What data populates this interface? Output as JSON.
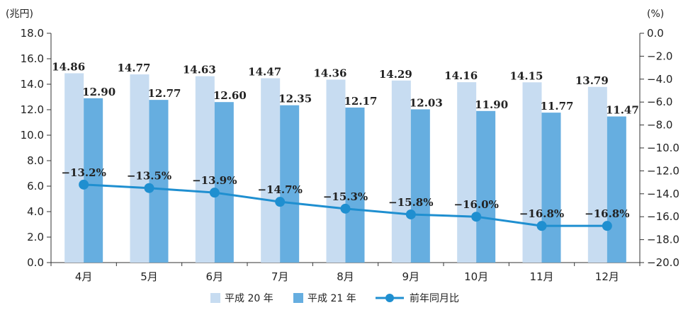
{
  "chart_data": {
    "type": "bar",
    "left_unit": "(兆円)",
    "right_unit": "(%)",
    "categories": [
      "4月",
      "5月",
      "6月",
      "7月",
      "8月",
      "9月",
      "10月",
      "11月",
      "12月"
    ],
    "series": [
      {
        "name": "平成 20 年",
        "type": "bar",
        "axis": "left",
        "color": "#c7dcf1",
        "values": [
          14.86,
          14.77,
          14.63,
          14.47,
          14.36,
          14.29,
          14.16,
          14.15,
          13.79
        ],
        "labels": [
          "14.86",
          "14.77",
          "14.63",
          "14.47",
          "14.36",
          "14.29",
          "14.16",
          "14.15",
          "13.79"
        ]
      },
      {
        "name": "平成 21 年",
        "type": "bar",
        "axis": "left",
        "color": "#66aee0",
        "values": [
          12.9,
          12.77,
          12.6,
          12.35,
          12.17,
          12.03,
          11.9,
          11.77,
          11.47
        ],
        "labels": [
          "12.90",
          "12.77",
          "12.60",
          "12.35",
          "12.17",
          "12.03",
          "11.90",
          "11.77",
          "11.47"
        ]
      },
      {
        "name": "前年同月比",
        "type": "line",
        "axis": "right",
        "color": "#1f8fd0",
        "values": [
          -13.2,
          -13.5,
          -13.9,
          -14.7,
          -15.3,
          -15.8,
          -16.0,
          -16.8,
          -16.8
        ],
        "labels": [
          "−13.2%",
          "−13.5%",
          "−13.9%",
          "−14.7%",
          "−15.3%",
          "−15.8%",
          "−16.0%",
          "−16.8%",
          "−16.8%"
        ]
      }
    ],
    "left_axis": {
      "ylim": [
        0,
        18
      ],
      "ticks": [
        "0.0",
        "2.0",
        "4.0",
        "6.0",
        "8.0",
        "10.0",
        "12.0",
        "14.0",
        "16.0",
        "18.0"
      ]
    },
    "right_axis": {
      "ylim": [
        -20,
        0
      ],
      "ticks": [
        "0.0",
        "−2.0",
        "−4.0",
        "−6.0",
        "−8.0",
        "−10.0",
        "−12.0",
        "−14.0",
        "−16.0",
        "−18.0",
        "−20.0"
      ]
    },
    "legend_position": "bottom",
    "grid": false
  }
}
